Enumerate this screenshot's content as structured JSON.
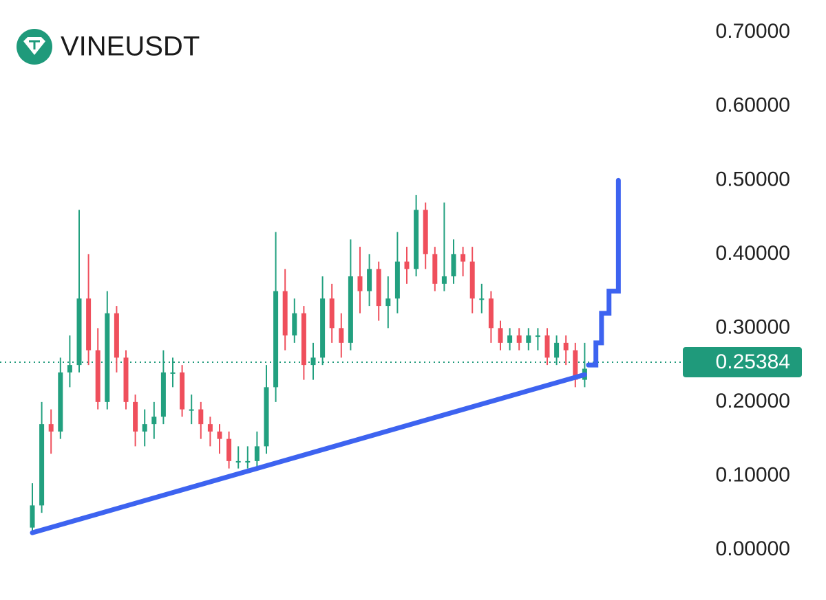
{
  "chart_data": {
    "type": "candlestick",
    "title": "VINEUSDT",
    "open": [
      0.03,
      0.06,
      0.17,
      0.16,
      0.24,
      0.25,
      0.34,
      0.27,
      0.2,
      0.32,
      0.26,
      0.2,
      0.16,
      0.17,
      0.18,
      0.24,
      0.24,
      0.19,
      0.19,
      0.17,
      0.16,
      0.15,
      0.12,
      0.12,
      0.12,
      0.14,
      0.22,
      0.35,
      0.29,
      0.32,
      0.25,
      0.26,
      0.34,
      0.3,
      0.28,
      0.37,
      0.35,
      0.38,
      0.33,
      0.34,
      0.39,
      0.38,
      0.46,
      0.4,
      0.36,
      0.37,
      0.4,
      0.39,
      0.34,
      0.34,
      0.3,
      0.28,
      0.29,
      0.28,
      0.29,
      0.29,
      0.26,
      0.28,
      0.27,
      0.23
    ],
    "high": [
      0.09,
      0.2,
      0.19,
      0.26,
      0.29,
      0.46,
      0.4,
      0.3,
      0.35,
      0.33,
      0.27,
      0.21,
      0.19,
      0.2,
      0.27,
      0.26,
      0.25,
      0.21,
      0.2,
      0.18,
      0.17,
      0.16,
      0.14,
      0.14,
      0.16,
      0.25,
      0.43,
      0.38,
      0.34,
      0.33,
      0.28,
      0.37,
      0.36,
      0.32,
      0.42,
      0.41,
      0.4,
      0.39,
      0.37,
      0.43,
      0.41,
      0.48,
      0.47,
      0.41,
      0.47,
      0.42,
      0.41,
      0.41,
      0.36,
      0.35,
      0.31,
      0.3,
      0.3,
      0.3,
      0.3,
      0.3,
      0.29,
      0.29,
      0.28,
      0.28
    ],
    "low": [
      0.02,
      0.05,
      0.13,
      0.15,
      0.22,
      0.24,
      0.25,
      0.19,
      0.19,
      0.24,
      0.19,
      0.14,
      0.14,
      0.15,
      0.17,
      0.22,
      0.18,
      0.17,
      0.15,
      0.14,
      0.13,
      0.11,
      0.11,
      0.11,
      0.11,
      0.13,
      0.2,
      0.27,
      0.28,
      0.23,
      0.23,
      0.25,
      0.28,
      0.26,
      0.27,
      0.32,
      0.33,
      0.31,
      0.3,
      0.32,
      0.36,
      0.37,
      0.38,
      0.35,
      0.35,
      0.36,
      0.37,
      0.32,
      0.32,
      0.28,
      0.27,
      0.27,
      0.27,
      0.27,
      0.27,
      0.25,
      0.25,
      0.25,
      0.22,
      0.22
    ],
    "close": [
      0.06,
      0.17,
      0.16,
      0.24,
      0.25,
      0.34,
      0.27,
      0.2,
      0.32,
      0.26,
      0.2,
      0.16,
      0.17,
      0.18,
      0.24,
      0.24,
      0.19,
      0.19,
      0.17,
      0.16,
      0.15,
      0.12,
      0.12,
      0.12,
      0.14,
      0.22,
      0.35,
      0.29,
      0.32,
      0.25,
      0.26,
      0.34,
      0.3,
      0.28,
      0.37,
      0.35,
      0.38,
      0.33,
      0.34,
      0.39,
      0.38,
      0.46,
      0.4,
      0.36,
      0.37,
      0.4,
      0.39,
      0.34,
      0.34,
      0.3,
      0.28,
      0.29,
      0.28,
      0.29,
      0.29,
      0.26,
      0.28,
      0.27,
      0.23,
      0.245
    ],
    "up_color": "#22a07f",
    "down_color": "#ef4f5c",
    "last_price": 0.25384,
    "last_price_color": "#1f9a7b",
    "trendline": {
      "x": [
        0,
        59
      ],
      "y": [
        0.023,
        0.237
      ],
      "color": "#3d63f0"
    },
    "projection": {
      "x": [
        59.4,
        60.2,
        60.2,
        60.8,
        60.8,
        61.6,
        61.6,
        62.6,
        62.6
      ],
      "y": [
        0.25,
        0.25,
        0.28,
        0.28,
        0.32,
        0.32,
        0.35,
        0.35,
        0.5
      ],
      "color": "#3d63f0"
    },
    "ylim": [
      -0.068,
      0.744
    ],
    "yticks": [
      {
        "value": 0.0,
        "label": "0.00000"
      },
      {
        "value": 0.1,
        "label": "0.10000"
      },
      {
        "value": 0.2,
        "label": "0.20000"
      },
      {
        "value": 0.3,
        "label": "0.30000"
      },
      {
        "value": 0.4,
        "label": "0.40000"
      },
      {
        "value": 0.5,
        "label": "0.50000"
      },
      {
        "value": 0.6,
        "label": "0.60000"
      },
      {
        "value": 0.7,
        "label": "0.70000"
      }
    ]
  }
}
